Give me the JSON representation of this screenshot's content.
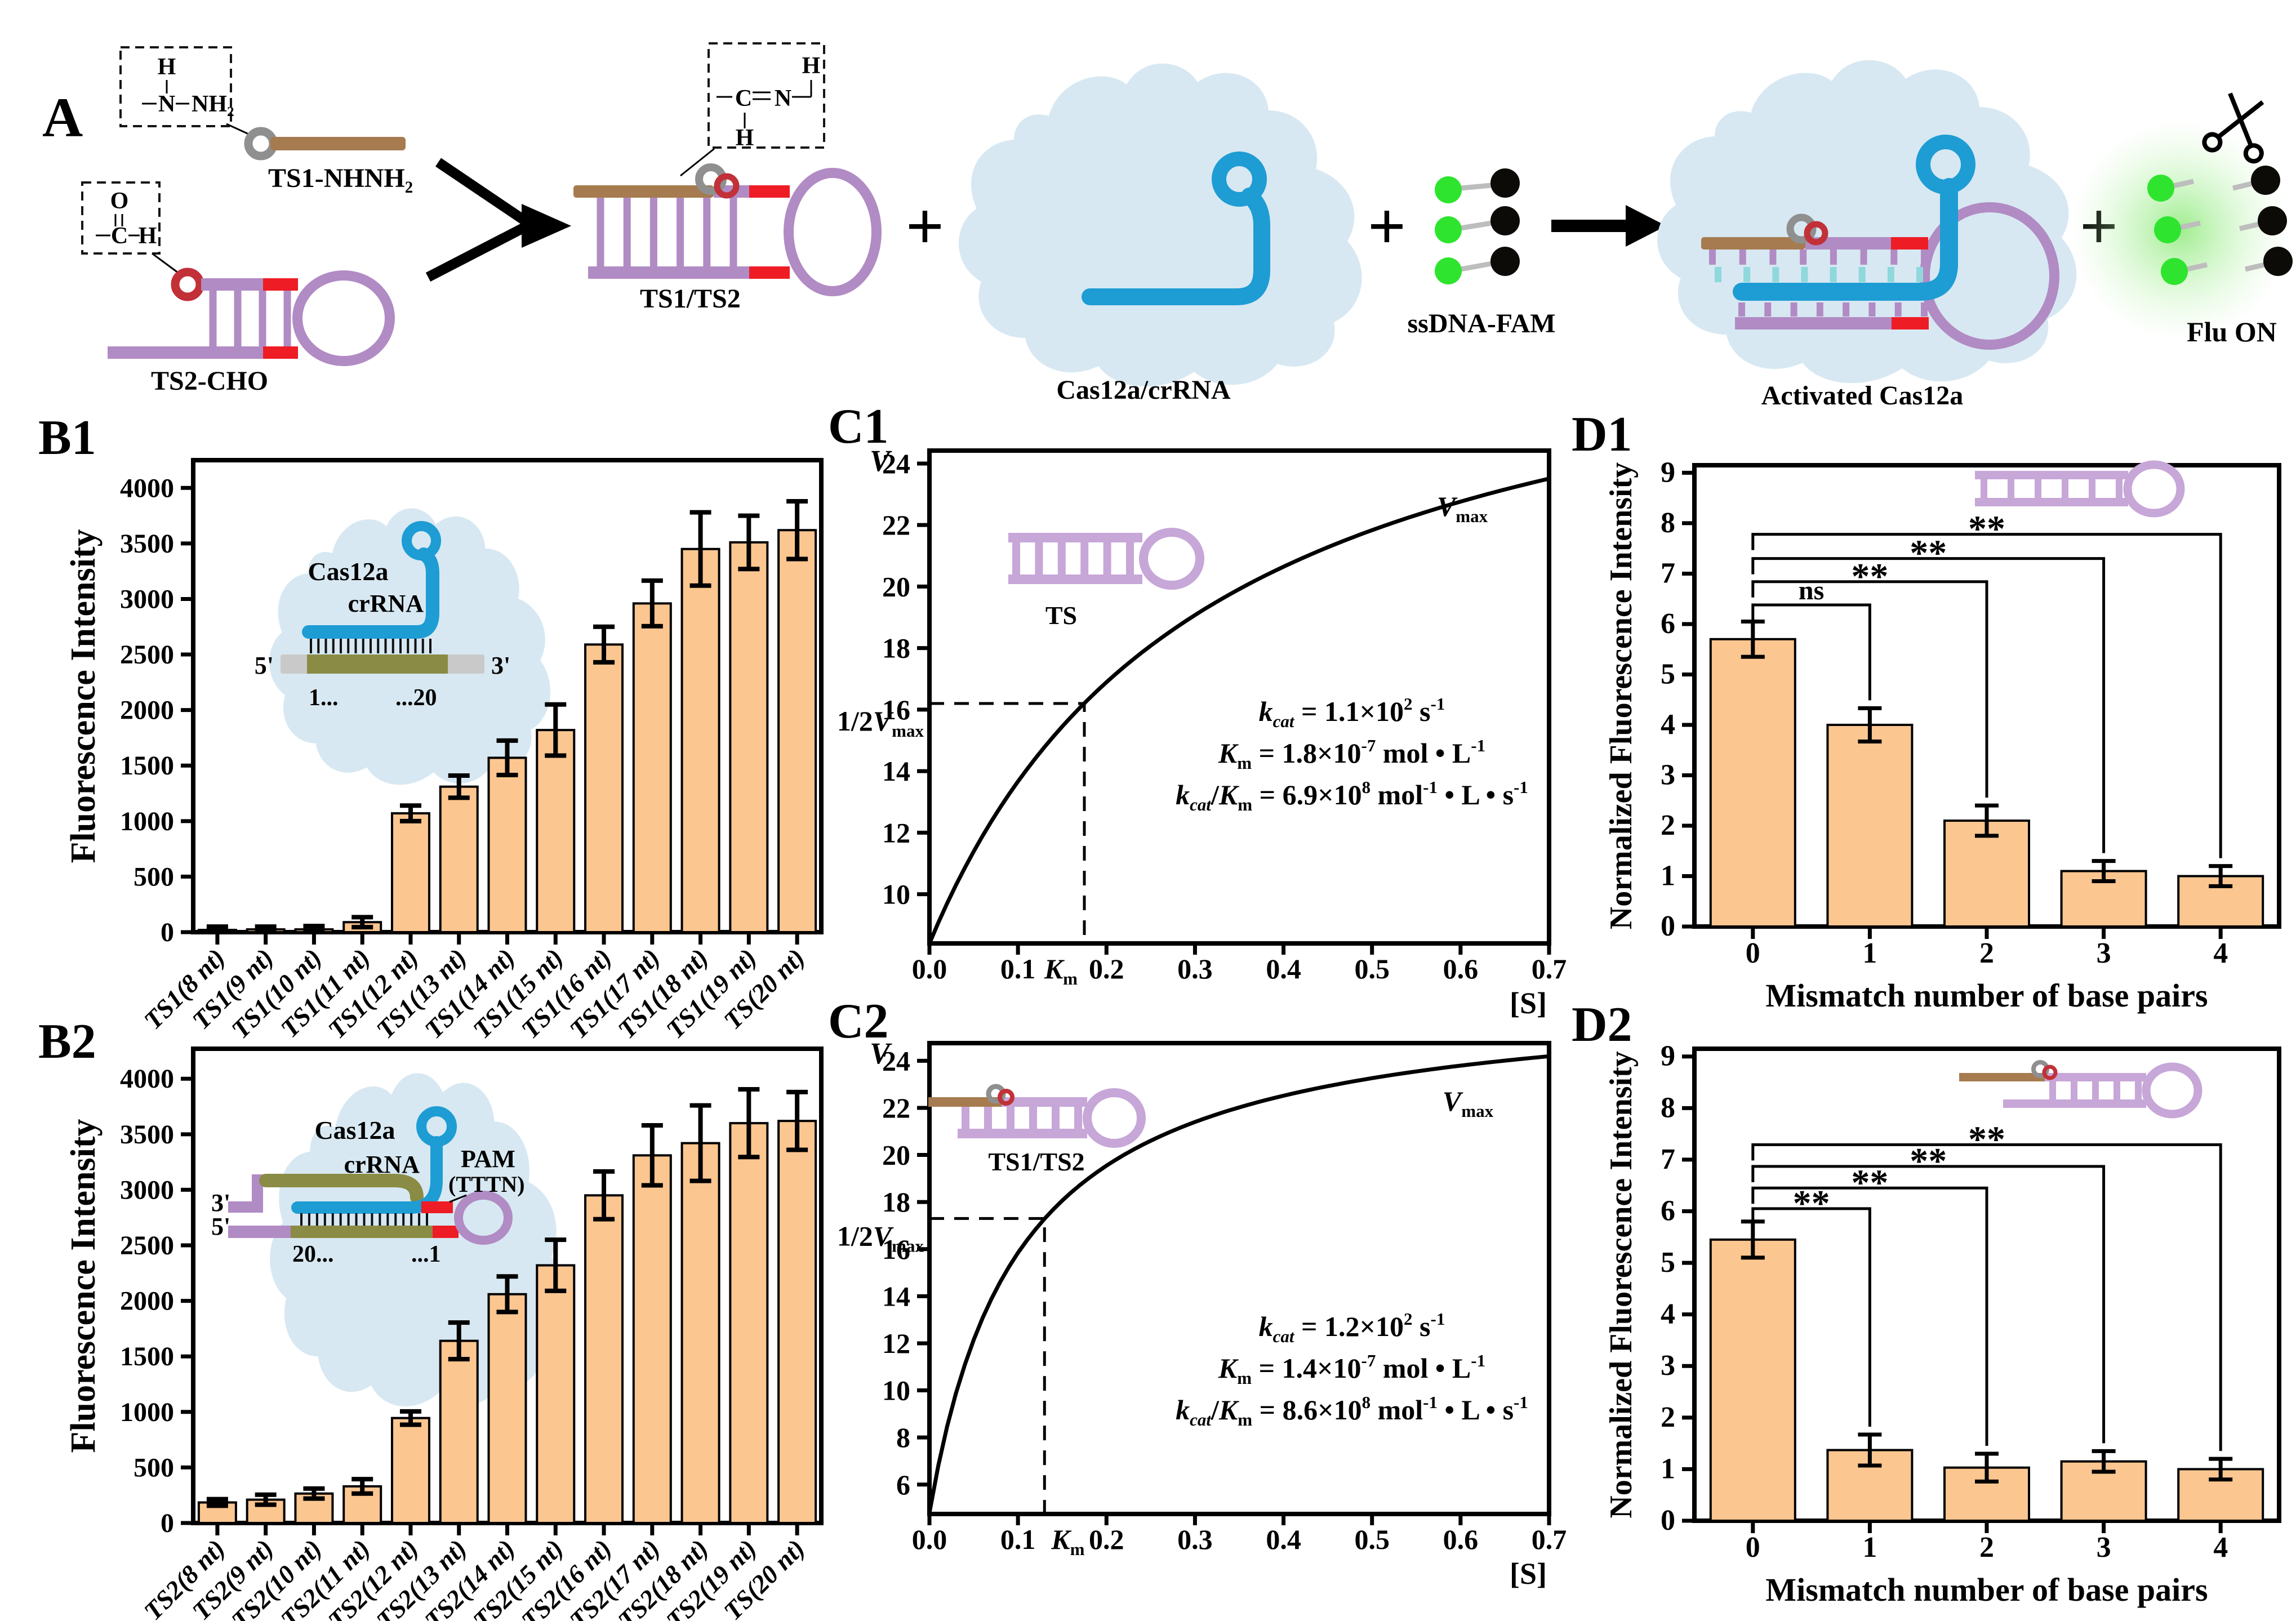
{
  "panel_a": {
    "label": "A",
    "atoms": {
      "h": "H",
      "n": "N",
      "nh2": "NH₂",
      "o": "O",
      "c": "C"
    },
    "ts1_label": "TS1-NHNH₂",
    "ts2_label": "TS2-CHO",
    "product_label": "TS1/TS2",
    "cas_label": "Cas12a/crRNA",
    "ssdna_label": "ssDNA-FAM",
    "activated_label": "Activated Cas12a",
    "fluon_label": "Flu ON",
    "plus": "+"
  },
  "insets": {
    "b1": {
      "cas": "Cas12a",
      "crrna": "crRNA",
      "five_prime": "5'",
      "three_prime": "3'",
      "pos_start": "1...",
      "pos_end": "...20"
    },
    "b2": {
      "cas": "Cas12a",
      "crrna": "crRNA",
      "pam": "PAM",
      "pam_seq": "(TTTN)",
      "three_prime": "3'",
      "five_prime": "5'",
      "pos_start": "20...",
      "pos_end": "...1"
    },
    "c1": {
      "label": "TS"
    },
    "c2": {
      "label": "TS1/TS2"
    }
  },
  "colors": {
    "bar_fill": "#FCC690",
    "bar_stroke": "#000000",
    "blob": "#D7E8F2",
    "crrna_blue": "#1E9CD4",
    "purple": "#B18BC4",
    "purple_light": "#C7A6D8",
    "red": "#EE1C25",
    "ring_red": "#C23038",
    "brown": "#A67B4F",
    "gray_ring": "#8F8F8F",
    "target_gray": "#C9C9C9",
    "olive": "#8A8B44",
    "cyan": "#8FD8DC",
    "fam_green": "#2FE42F",
    "quencher": "#0D0B08",
    "linker_gray": "#BDBDBD"
  },
  "chart_data": [
    {
      "id": "B1",
      "panel_label": "B1",
      "type": "bar",
      "ylabel": "Fluorescence Intensity",
      "categories": [
        "TS1(8 nt)",
        "TS1(9 nt)",
        "TS1(10 nt)",
        "TS1(11 nt)",
        "TS1(12 nt)",
        "TS1(13 nt)",
        "TS1(14 nt)",
        "TS1(15 nt)",
        "TS1(16 nt)",
        "TS1(17 nt)",
        "TS1(18 nt)",
        "TS1(19 nt)",
        "TS(20 nt)"
      ],
      "values": [
        20,
        25,
        25,
        90,
        1070,
        1310,
        1570,
        1820,
        2590,
        2960,
        3450,
        3510,
        3620
      ],
      "errors": [
        30,
        25,
        30,
        45,
        70,
        100,
        155,
        230,
        160,
        205,
        330,
        240,
        260
      ],
      "yticks": [
        "0",
        "500",
        "1000",
        "1500",
        "2000",
        "2500",
        "3000",
        "3500",
        "4000"
      ],
      "ylim": [
        0,
        4250
      ]
    },
    {
      "id": "B2",
      "panel_label": "B2",
      "type": "bar",
      "ylabel": "Fluorescence Intensity",
      "categories": [
        "TS2(8 nt)",
        "TS2(9 nt)",
        "TS2(10 nt)",
        "TS2(11 nt)",
        "TS2(12 nt)",
        "TS2(13 nt)",
        "TS2(14 nt)",
        "TS2(15 nt)",
        "TS2(16 nt)",
        "TS2(17 nt)",
        "TS2(18 nt)",
        "TS2(19 nt)",
        "TS(20 nt)"
      ],
      "values": [
        185,
        210,
        265,
        330,
        945,
        1640,
        2060,
        2320,
        2950,
        3310,
        3420,
        3600,
        3620
      ],
      "errors": [
        30,
        45,
        45,
        65,
        60,
        165,
        160,
        230,
        215,
        270,
        340,
        305,
        260
      ],
      "yticks": [
        "0",
        "500",
        "1000",
        "1500",
        "2000",
        "2500",
        "3000",
        "3500",
        "4000"
      ],
      "ylim": [
        0,
        4270
      ]
    },
    {
      "id": "C1",
      "panel_label": "C1",
      "type": "line",
      "ylim": [
        8.4,
        24.42
      ],
      "xlim": [
        0,
        0.7
      ],
      "yticks": [
        "10",
        "12",
        "14",
        "16",
        "18",
        "20",
        "22",
        "24"
      ],
      "xticks": [
        "0.0",
        "0.1",
        "0.2",
        "0.3",
        "0.4",
        "0.5",
        "0.6",
        "0.7"
      ],
      "half_v": 16.2,
      "km_s": 0.175,
      "fit": {
        "v0": 8.4,
        "vm": 21.95,
        "k": 0.317
      },
      "v_label": [
        {
          "t": "V",
          "i": 1
        }
      ],
      "s_label": [
        {
          "t": "[S]"
        }
      ],
      "vmax_label": [
        {
          "t": "V",
          "i": 1
        },
        {
          "t": "max",
          "sub": 1
        }
      ],
      "half_label": [
        {
          "t": "1/2"
        },
        {
          "t": "V",
          "i": 1
        },
        {
          "t": "max",
          "sub": 1
        }
      ],
      "km_label": [
        {
          "t": "K",
          "i": 1
        },
        {
          "t": "m",
          "sub": 1
        }
      ],
      "annotations": [
        [
          {
            "t": "k",
            "i": 1
          },
          {
            "t": "cat",
            "i": 1,
            "sub": 1
          },
          {
            "t": " = 1.1×10"
          },
          {
            "t": "2",
            "sup": 1
          },
          {
            "t": " s"
          },
          {
            "t": "-1",
            "sup": 1
          }
        ],
        [
          {
            "t": "K",
            "i": 1
          },
          {
            "t": "m",
            "sub": 1
          },
          {
            "t": " = 1.8×10"
          },
          {
            "t": "-7",
            "sup": 1
          },
          {
            "t": " mol • L"
          },
          {
            "t": "-1",
            "sup": 1
          }
        ],
        [
          {
            "t": "k",
            "i": 1
          },
          {
            "t": "cat",
            "i": 1,
            "sub": 1
          },
          {
            "t": "/"
          },
          {
            "t": "K",
            "i": 1
          },
          {
            "t": "m",
            "sub": 1
          },
          {
            "t": " = 6.9×10"
          },
          {
            "t": "8",
            "sup": 1
          },
          {
            "t": " mol"
          },
          {
            "t": "-1",
            "sup": 1
          },
          {
            "t": " • L • s"
          },
          {
            "t": "-1",
            "sup": 1
          }
        ]
      ]
    },
    {
      "id": "C2",
      "panel_label": "C2",
      "type": "line",
      "ylim": [
        4.75,
        24.75
      ],
      "xlim": [
        0,
        0.7
      ],
      "yticks": [
        "6",
        "8",
        "10",
        "12",
        "14",
        "16",
        "18",
        "20",
        "22",
        "24"
      ],
      "xticks": [
        "0.0",
        "0.1",
        "0.2",
        "0.3",
        "0.4",
        "0.5",
        "0.6",
        "0.7"
      ],
      "half_v": 17.3,
      "km_s": 0.13,
      "fit": {
        "v0": 4.8,
        "vm": 22.19,
        "k": 0.101
      },
      "v_label": [
        {
          "t": "V",
          "i": 1
        }
      ],
      "s_label": [
        {
          "t": "[S]"
        }
      ],
      "vmax_label": [
        {
          "t": "V",
          "i": 1
        },
        {
          "t": "max",
          "sub": 1
        }
      ],
      "half_label": [
        {
          "t": "1/2"
        },
        {
          "t": "V",
          "i": 1
        },
        {
          "t": "max",
          "sub": 1
        }
      ],
      "km_label": [
        {
          "t": "K",
          "i": 1
        },
        {
          "t": "m",
          "sub": 1
        }
      ],
      "annotations": [
        [
          {
            "t": "k",
            "i": 1
          },
          {
            "t": "cat",
            "i": 1,
            "sub": 1
          },
          {
            "t": " = 1.2×10"
          },
          {
            "t": "2",
            "sup": 1
          },
          {
            "t": " s"
          },
          {
            "t": "-1",
            "sup": 1
          }
        ],
        [
          {
            "t": "K",
            "i": 1
          },
          {
            "t": "m",
            "sub": 1
          },
          {
            "t": " = 1.4×10"
          },
          {
            "t": "-7",
            "sup": 1
          },
          {
            "t": " mol • L"
          },
          {
            "t": "-1",
            "sup": 1
          }
        ],
        [
          {
            "t": "k",
            "i": 1
          },
          {
            "t": "cat",
            "i": 1,
            "sub": 1
          },
          {
            "t": "/"
          },
          {
            "t": "K",
            "i": 1
          },
          {
            "t": "m",
            "sub": 1
          },
          {
            "t": " = 8.6×10"
          },
          {
            "t": "8",
            "sup": 1
          },
          {
            "t": " mol"
          },
          {
            "t": "-1",
            "sup": 1
          },
          {
            "t": " • L • s"
          },
          {
            "t": "-1",
            "sup": 1
          }
        ]
      ]
    },
    {
      "id": "D1",
      "panel_label": "D1",
      "type": "bar",
      "ylabel": "Normalized Fluorescence Intensity",
      "xlabel": "Mismatch number of base pairs",
      "categories": [
        "0",
        "1",
        "2",
        "3",
        "4"
      ],
      "values": [
        5.7,
        4.0,
        2.1,
        1.1,
        1.0
      ],
      "errors": [
        0.35,
        0.33,
        0.3,
        0.2,
        0.2
      ],
      "yticks": [
        "0",
        "1",
        "2",
        "3",
        "4",
        "5",
        "6",
        "7",
        "8",
        "9"
      ],
      "ylim": [
        0,
        9.15
      ],
      "brackets": [
        {
          "from": 0,
          "to": 1,
          "label": "ns",
          "height": 6.38
        },
        {
          "from": 0,
          "to": 2,
          "label": "**",
          "height": 6.84
        },
        {
          "from": 0,
          "to": 3,
          "label": "**",
          "height": 7.3
        },
        {
          "from": 0,
          "to": 4,
          "label": "**",
          "height": 7.78
        }
      ]
    },
    {
      "id": "D2",
      "panel_label": "D2",
      "type": "bar",
      "ylabel": "Normalized Fluorescence Intensity",
      "xlabel": "Mismatch number of base pairs",
      "categories": [
        "0",
        "1",
        "2",
        "3",
        "4"
      ],
      "values": [
        5.45,
        1.37,
        1.03,
        1.15,
        1.0
      ],
      "errors": [
        0.35,
        0.3,
        0.27,
        0.2,
        0.2
      ],
      "yticks": [
        "0",
        "1",
        "2",
        "3",
        "4",
        "5",
        "6",
        "7",
        "8",
        "9"
      ],
      "ylim": [
        0,
        9.15
      ],
      "brackets": [
        {
          "from": 0,
          "to": 1,
          "label": "**",
          "height": 6.05
        },
        {
          "from": 0,
          "to": 2,
          "label": "**",
          "height": 6.45
        },
        {
          "from": 0,
          "to": 3,
          "label": "**",
          "height": 6.87
        },
        {
          "from": 0,
          "to": 4,
          "label": "**",
          "height": 7.29
        }
      ]
    }
  ]
}
